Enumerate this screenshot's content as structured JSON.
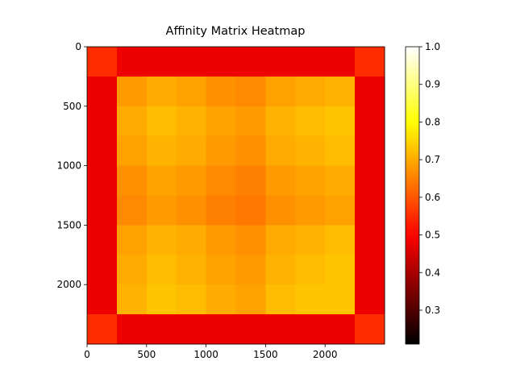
{
  "chart_data": {
    "type": "heatmap",
    "title": "Affinity Matrix Heatmap",
    "colormap": "hot",
    "bins": [
      0,
      250,
      500,
      750,
      1000,
      1250,
      1500,
      1750,
      2000,
      2250,
      2500
    ],
    "values": [
      [
        0.55,
        0.48,
        0.48,
        0.48,
        0.48,
        0.48,
        0.48,
        0.48,
        0.48,
        0.55
      ],
      [
        0.48,
        0.68,
        0.7,
        0.69,
        0.67,
        0.66,
        0.69,
        0.7,
        0.71,
        0.48
      ],
      [
        0.48,
        0.7,
        0.72,
        0.71,
        0.69,
        0.68,
        0.71,
        0.72,
        0.73,
        0.48
      ],
      [
        0.48,
        0.69,
        0.71,
        0.7,
        0.68,
        0.67,
        0.7,
        0.71,
        0.72,
        0.48
      ],
      [
        0.48,
        0.67,
        0.69,
        0.68,
        0.66,
        0.65,
        0.68,
        0.69,
        0.7,
        0.48
      ],
      [
        0.48,
        0.66,
        0.68,
        0.67,
        0.65,
        0.64,
        0.67,
        0.68,
        0.69,
        0.48
      ],
      [
        0.48,
        0.69,
        0.71,
        0.7,
        0.68,
        0.67,
        0.7,
        0.71,
        0.72,
        0.48
      ],
      [
        0.48,
        0.7,
        0.72,
        0.71,
        0.69,
        0.68,
        0.71,
        0.72,
        0.73,
        0.48
      ],
      [
        0.48,
        0.71,
        0.73,
        0.72,
        0.7,
        0.69,
        0.72,
        0.73,
        0.73,
        0.48
      ],
      [
        0.55,
        0.48,
        0.48,
        0.48,
        0.48,
        0.48,
        0.48,
        0.48,
        0.48,
        0.55
      ]
    ],
    "xlim": [
      0,
      2500
    ],
    "ylim": [
      2500,
      0
    ],
    "xticks": [
      0,
      500,
      1000,
      1500,
      2000
    ],
    "yticks": [
      0,
      500,
      1000,
      1500,
      2000
    ],
    "clim": [
      0.21,
      1.0
    ],
    "cticks": [
      0.3,
      0.4,
      0.5,
      0.6,
      0.7,
      0.8,
      0.9,
      {
        "value": 1.0,
        "label": "1.0"
      }
    ]
  }
}
